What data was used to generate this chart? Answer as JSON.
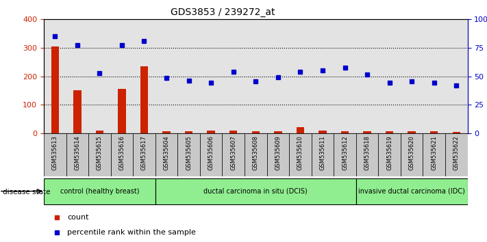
{
  "title": "GDS3853 / 239272_at",
  "samples": [
    "GSM535613",
    "GSM535614",
    "GSM535615",
    "GSM535616",
    "GSM535617",
    "GSM535604",
    "GSM535605",
    "GSM535606",
    "GSM535607",
    "GSM535608",
    "GSM535609",
    "GSM535610",
    "GSM535611",
    "GSM535612",
    "GSM535618",
    "GSM535619",
    "GSM535620",
    "GSM535621",
    "GSM535622"
  ],
  "counts_real": [
    305,
    150,
    10,
    155,
    235,
    7,
    7,
    8,
    8,
    7,
    7,
    20,
    8,
    7,
    7,
    7,
    7,
    7,
    5
  ],
  "percentile_pct": [
    85,
    77.5,
    52.5,
    77.5,
    81.25,
    48.75,
    46.25,
    44.5,
    53.75,
    45.5,
    49,
    53.75,
    55,
    57.5,
    51.75,
    44.5,
    45.5,
    44.5,
    42
  ],
  "group_labels": [
    "control (healthy breast)",
    "ductal carcinoma in situ (DCIS)",
    "invasive ductal carcinoma (IDC)"
  ],
  "group_sizes": [
    5,
    9,
    5
  ],
  "bar_color": "#cc2200",
  "dot_color": "#0000cc",
  "ylim_left": [
    0,
    400
  ],
  "yticks_left": [
    0,
    100,
    200,
    300,
    400
  ],
  "yticks_right": [
    0,
    25,
    50,
    75,
    100
  ],
  "group_bg_color": "#c8c8c8",
  "group_fill_color": "#90ee90"
}
